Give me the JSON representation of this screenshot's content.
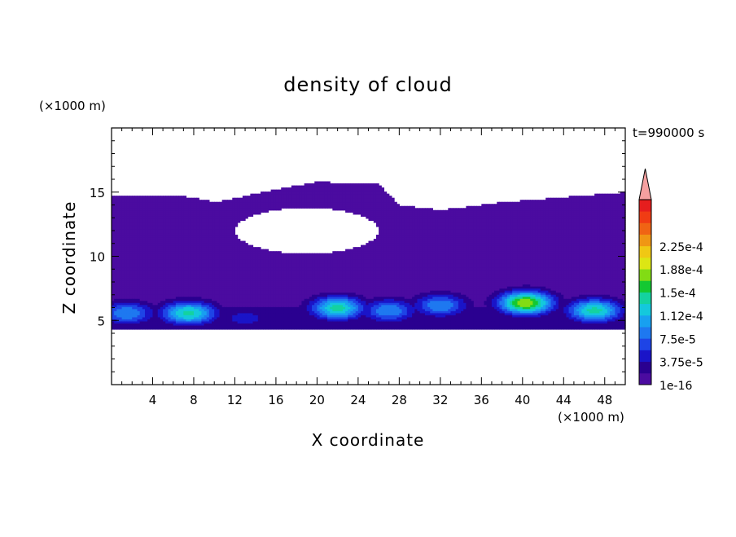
{
  "chart_data": {
    "type": "heatmap",
    "title": "density of cloud",
    "xlabel": "X coordinate",
    "ylabel": "Z coordinate",
    "x_unit": "(×1000 m)",
    "y_unit": "(×1000 m)",
    "time_label": "t=990000 s",
    "xlim": [
      0,
      50
    ],
    "ylim": [
      0,
      20
    ],
    "x_ticks": [
      4,
      8,
      12,
      16,
      20,
      24,
      28,
      32,
      36,
      40,
      44,
      48
    ],
    "y_ticks": [
      5,
      10,
      15
    ],
    "colorbar": {
      "labels": [
        "1e-16",
        "3.75e-5",
        "7.5e-5",
        "1.12e-4",
        "1.5e-4",
        "1.88e-4",
        "2.25e-4"
      ],
      "colors": [
        "#4B0BA0",
        "#2A0090",
        "#1A14C8",
        "#1E44E6",
        "#1E78F0",
        "#18A0F0",
        "#14C8DC",
        "#14D2A0",
        "#14C832",
        "#82DC14",
        "#DCE614",
        "#F0C814",
        "#F09614",
        "#F06414",
        "#F03C14",
        "#E61E1E"
      ],
      "overflow_color": "#F5A0A0"
    },
    "field": {
      "cloud_base_z": 4.4,
      "cloud_top_z": [
        14.8,
        14.8,
        14.6,
        14.2,
        15.2,
        15.8,
        15.6,
        14.0,
        13.6,
        14.2,
        14.6,
        15.0
      ],
      "top_x": [
        0,
        4,
        8,
        10,
        16,
        20,
        26,
        28,
        32,
        38,
        44,
        50
      ],
      "clear_region": {
        "x_range": [
          12,
          26
        ],
        "z_range": [
          10.2,
          13.8
        ]
      },
      "convective_cores": [
        {
          "x": 1.5,
          "z": 5.6,
          "peak": 7.5e-05
        },
        {
          "x": 7.5,
          "z": 5.6,
          "peak": 0.000112
        },
        {
          "x": 13.0,
          "z": 5.2,
          "peak": 3.75e-05
        },
        {
          "x": 22.0,
          "z": 6.0,
          "peak": 0.000112
        },
        {
          "x": 27.0,
          "z": 5.8,
          "peak": 7.5e-05
        },
        {
          "x": 32.0,
          "z": 6.2,
          "peak": 7.5e-05
        },
        {
          "x": 40.3,
          "z": 6.4,
          "peak": 0.00015
        },
        {
          "x": 47.0,
          "z": 5.8,
          "peak": 0.000112
        }
      ]
    }
  }
}
